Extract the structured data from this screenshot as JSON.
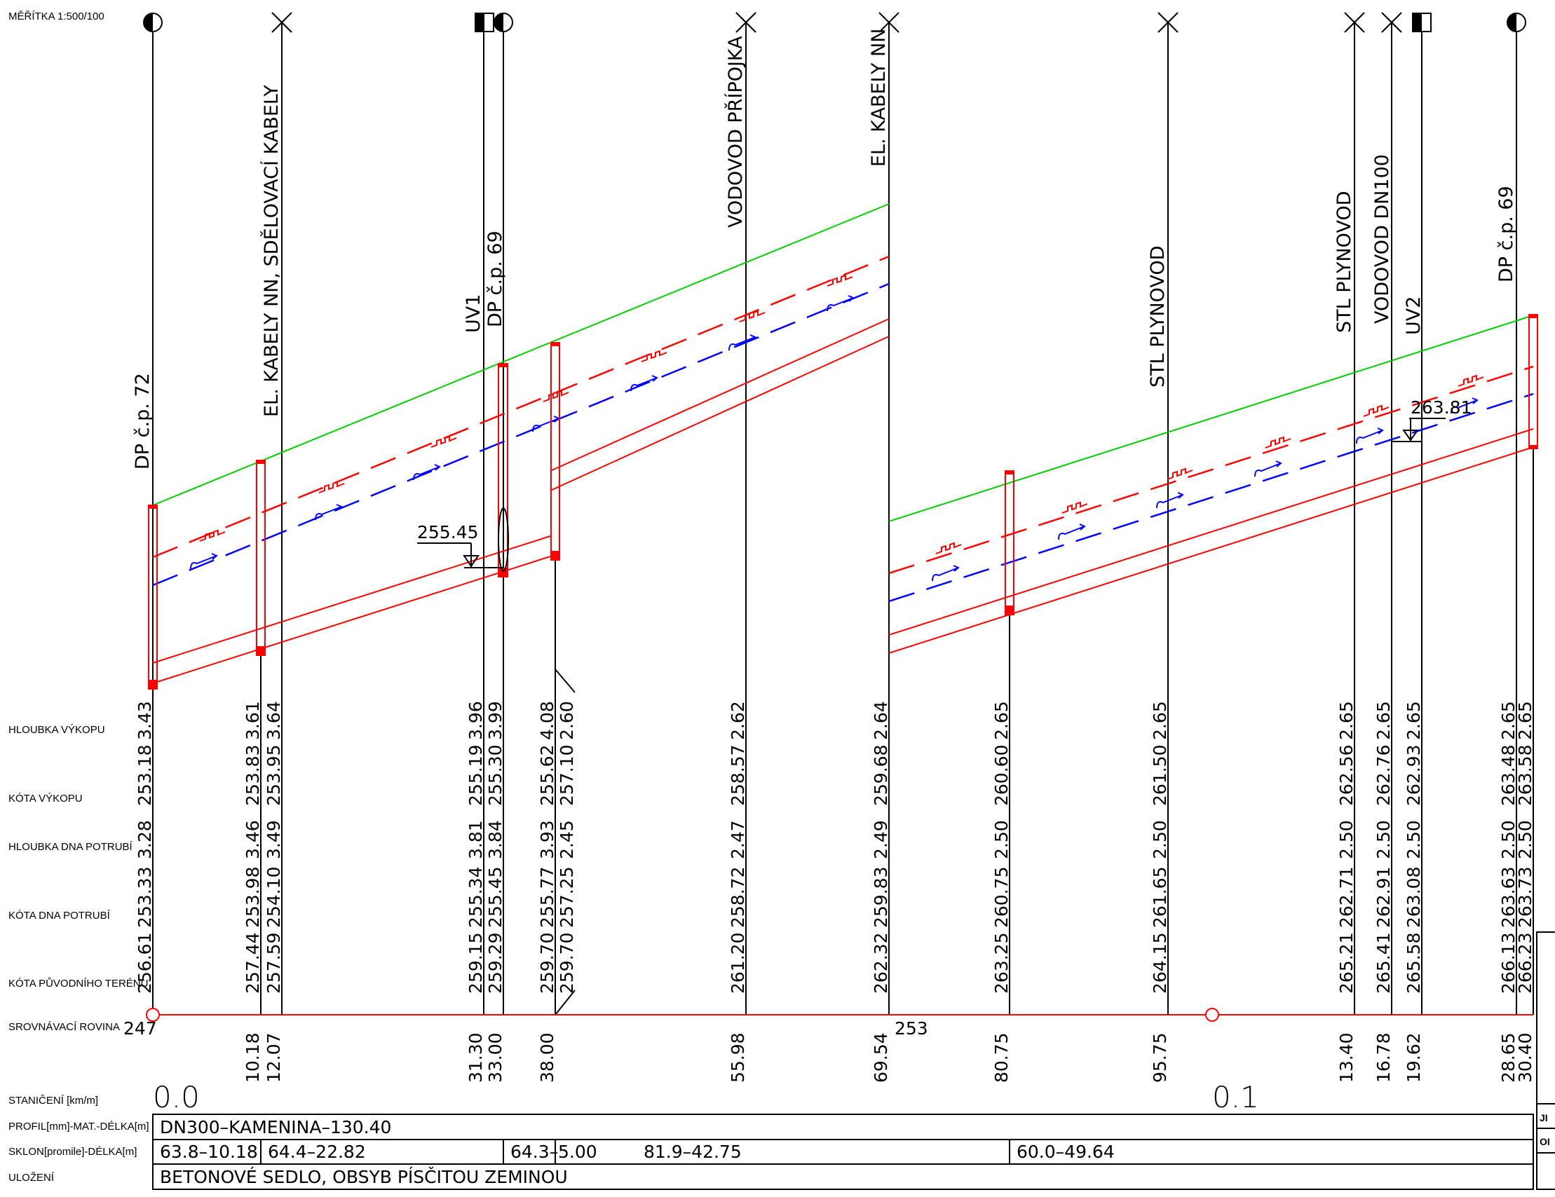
{
  "scale_label": "MĚŘÍTKA 1:500/100",
  "row_labels": {
    "hloubka_vykopu": "HLOUBKA VÝKOPU",
    "kota_vykopu": "KÓTA VÝKOPU",
    "hloubka_dna": "HLOUBKA DNA POTRUBÍ",
    "kota_dna": "KÓTA DNA POTRUBÍ",
    "kota_terenu": "KÓTA PŮVODNÍHO TERÉNU",
    "srovnavaci": "SROVNÁVACÍ ROVINA",
    "staniceni": "STANIČENÍ [km/m]",
    "profil": "PROFIL[mm]-MAT.-DÉLKA[m]",
    "sklon": "SKLON[promile]-DÉLKA[m]",
    "ulozeni": "ULOŽENÍ"
  },
  "crossing_labels": [
    "DP č.p. 72",
    "EL. KABELY NN, SDĚLOVACÍ KABELY",
    "UV1",
    "DP č.p. 69",
    "VODOVOD PŘÍPOJKA",
    "EL. KABELY NN",
    "STL PLYNOVOD",
    "STL PLYNOVOD",
    "VODOVOD DN100",
    "UV2",
    "DP č.p. 69"
  ],
  "level_marks": [
    "255.45",
    "263.81"
  ],
  "datum_values": [
    "247",
    "253"
  ],
  "km_marks": [
    "0.0",
    "0.1"
  ],
  "columns": [
    {
      "hloubka_vykopu": [
        "3.43"
      ],
      "kota_vykopu": [
        "253.18"
      ],
      "hloubka_dna": [
        "3.28"
      ],
      "kota_dna": [
        "253.33"
      ],
      "kota_terenu": [
        "256.61"
      ],
      "staniceni": [
        ""
      ]
    },
    {
      "hloubka_vykopu": [
        "3.61",
        "3.64"
      ],
      "kota_vykopu": [
        "253.83",
        "253.95"
      ],
      "hloubka_dna": [
        "3.46",
        "3.49"
      ],
      "kota_dna": [
        "253.98",
        "254.10"
      ],
      "kota_terenu": [
        "257.44",
        "257.59"
      ],
      "staniceni": [
        "10.18",
        "12.07"
      ]
    },
    {
      "hloubka_vykopu": [
        "3.96",
        "3.99"
      ],
      "kota_vykopu": [
        "255.19",
        "255.30"
      ],
      "hloubka_dna": [
        "3.81",
        "3.84"
      ],
      "kota_dna": [
        "255.34",
        "255.45"
      ],
      "kota_terenu": [
        "259.15",
        "259.29"
      ],
      "staniceni": [
        "31.30",
        "33.00"
      ]
    },
    {
      "hloubka_vykopu": [
        "4.08",
        "2.60"
      ],
      "kota_vykopu": [
        "255.62",
        "257.10"
      ],
      "hloubka_dna": [
        "3.93",
        "2.45"
      ],
      "kota_dna": [
        "255.77",
        "257.25"
      ],
      "kota_terenu": [
        "259.70",
        "259.70"
      ],
      "staniceni": [
        "38.00"
      ]
    },
    {
      "hloubka_vykopu": [
        "2.62"
      ],
      "kota_vykopu": [
        "258.57"
      ],
      "hloubka_dna": [
        "2.47"
      ],
      "kota_dna": [
        "258.72"
      ],
      "kota_terenu": [
        "261.20"
      ],
      "staniceni": [
        "55.98"
      ]
    },
    {
      "hloubka_vykopu": [
        "2.64"
      ],
      "kota_vykopu": [
        "259.68"
      ],
      "hloubka_dna": [
        "2.49"
      ],
      "kota_dna": [
        "259.83"
      ],
      "kota_terenu": [
        "262.32"
      ],
      "staniceni": [
        "69.54"
      ]
    },
    {
      "hloubka_vykopu": [
        "2.65"
      ],
      "kota_vykopu": [
        "260.60"
      ],
      "hloubka_dna": [
        "2.50"
      ],
      "kota_dna": [
        "260.75"
      ],
      "kota_terenu": [
        "263.25"
      ],
      "staniceni": [
        "80.75"
      ]
    },
    {
      "hloubka_vykopu": [
        "2.65"
      ],
      "kota_vykopu": [
        "261.50"
      ],
      "hloubka_dna": [
        "2.50"
      ],
      "kota_dna": [
        "261.65"
      ],
      "kota_terenu": [
        "264.15"
      ],
      "staniceni": [
        "95.75"
      ]
    },
    {
      "hloubka_vykopu": [
        "2.65"
      ],
      "kota_vykopu": [
        "262.56"
      ],
      "hloubka_dna": [
        "2.50"
      ],
      "kota_dna": [
        "262.71"
      ],
      "kota_terenu": [
        "265.21"
      ],
      "staniceni": [
        "13.40"
      ]
    },
    {
      "hloubka_vykopu": [
        "2.65"
      ],
      "kota_vykopu": [
        "262.76"
      ],
      "hloubka_dna": [
        "2.50"
      ],
      "kota_dna": [
        "262.91"
      ],
      "kota_terenu": [
        "265.41"
      ],
      "staniceni": [
        "16.78"
      ]
    },
    {
      "hloubka_vykopu": [
        "2.65"
      ],
      "kota_vykopu": [
        "262.93"
      ],
      "hloubka_dna": [
        "2.50"
      ],
      "kota_dna": [
        "263.08"
      ],
      "kota_terenu": [
        "265.58"
      ],
      "staniceni": [
        "19.62"
      ]
    },
    {
      "hloubka_vykopu": [
        "2.65",
        "2.65"
      ],
      "kota_vykopu": [
        "263.48",
        "263.58"
      ],
      "hloubka_dna": [
        "2.50",
        "2.50"
      ],
      "kota_dna": [
        "263.63",
        "263.73"
      ],
      "kota_terenu": [
        "266.13",
        "266.23"
      ],
      "staniceni": [
        "28.65",
        "30.40"
      ]
    }
  ],
  "profil_text": "DN300–KAMENINA–130.40",
  "sklon_segments": [
    "63.8–10.18",
    "64.4–22.82",
    "64.3–",
    "5.00",
    "81.9–42.75",
    "60.0–49.64"
  ],
  "ulozeni_text": "BETONOVÉ SEDLO, OBSYB PÍSČITOU ZEMINOU",
  "corner_fragments": [
    "JI",
    "OI"
  ],
  "colors": {
    "line": "#000000",
    "pipe": "#ff0000",
    "terrain": "#00cc00",
    "water": "#0000ff"
  }
}
